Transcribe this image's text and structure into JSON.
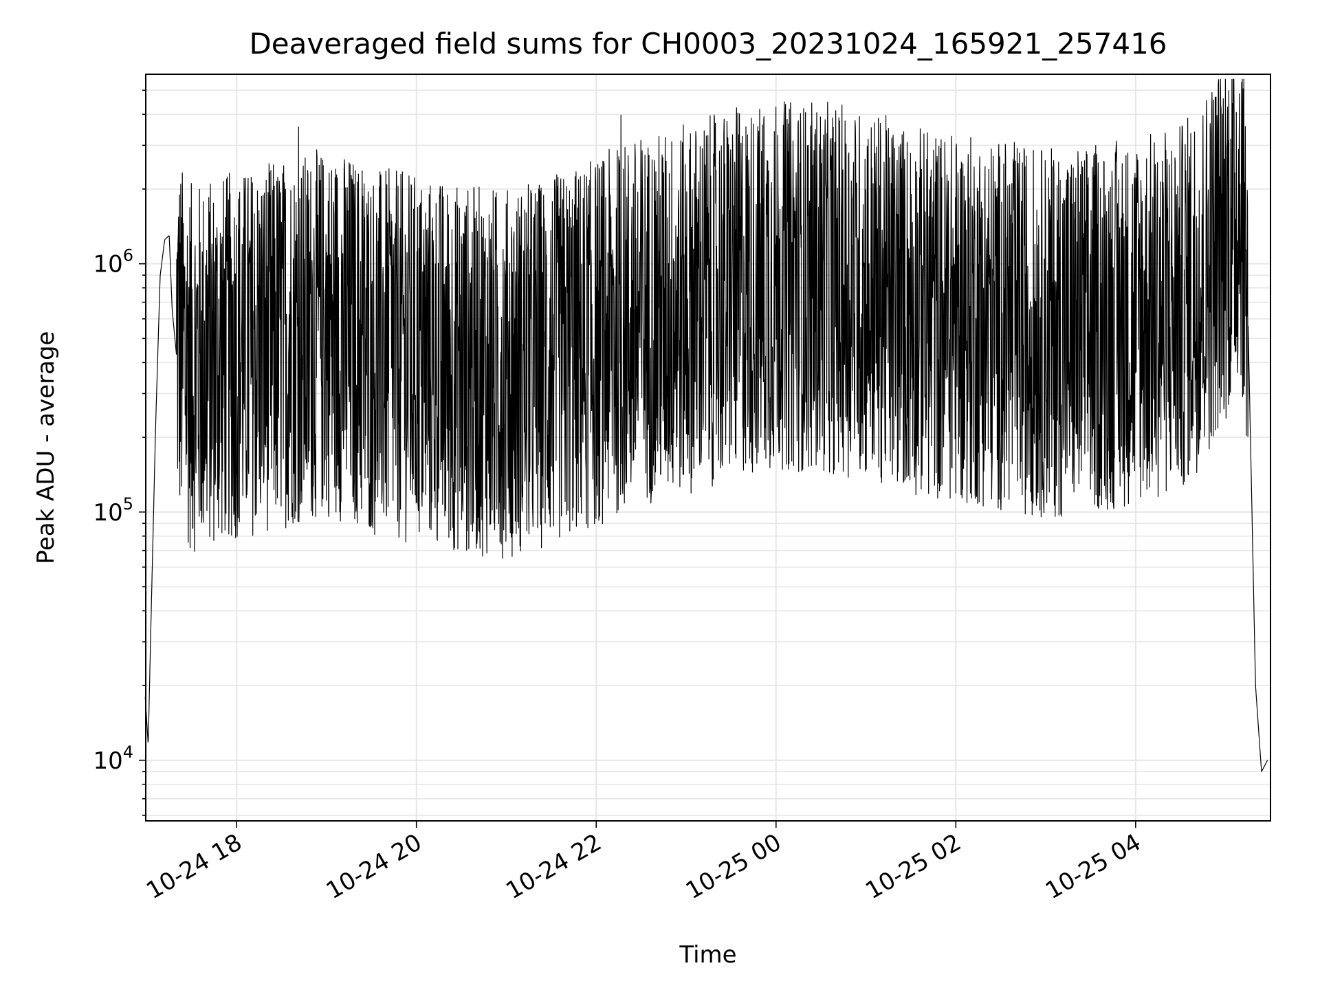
{
  "chart_data": {
    "type": "line",
    "title": "Deaveraged field sums for CH0003_20231024_165921_257416",
    "xlabel": "Time",
    "ylabel": "Peak ADU - average",
    "yscale": "log",
    "ylim": [
      5700,
      5800000
    ],
    "xlim": [
      "2023-10-24 16:59:21",
      "2023-10-25 05:30:00"
    ],
    "grid": true,
    "line_color": "#000000",
    "grid_color": "#e6e6e6",
    "xtick_labels": [
      "10-24 18",
      "10-24 20",
      "10-24 22",
      "10-25 00",
      "10-25 02",
      "10-25 04"
    ],
    "xtick_values": [
      "2023-10-24 18:00",
      "2023-10-24 20:00",
      "2023-10-24 22:00",
      "2023-10-25 00:00",
      "2023-10-25 02:00",
      "2023-10-25 04:00"
    ],
    "ytick_labels": [
      {
        "base": "10",
        "exp": "4",
        "value": 10000
      },
      {
        "base": "10",
        "exp": "5",
        "value": 100000
      },
      {
        "base": "10",
        "exp": "6",
        "value": 1000000
      }
    ],
    "series": [
      {
        "x": [
          "2023-10-24 16:59",
          "2023-10-24 17:01",
          "2023-10-24 17:03",
          "2023-10-24 17:06",
          "2023-10-24 17:09",
          "2023-10-24 17:12",
          "2023-10-24 17:15",
          "2023-10-24 17:17",
          "2023-10-24 17:20",
          "2023-10-24 17:24",
          "2023-10-24 17:30",
          "2023-10-24 17:45",
          "2023-10-24 18:00",
          "2023-10-24 18:30",
          "2023-10-24 19:00",
          "2023-10-24 19:15",
          "2023-10-24 19:30",
          "2023-10-24 20:00",
          "2023-10-24 20:30",
          "2023-10-24 21:00",
          "2023-10-24 21:30",
          "2023-10-24 22:00",
          "2023-10-24 22:20",
          "2023-10-24 22:35",
          "2023-10-24 23:00",
          "2023-10-24 23:30",
          "2023-10-25 00:00",
          "2023-10-25 00:30",
          "2023-10-25 01:00",
          "2023-10-25 01:30",
          "2023-10-25 02:00",
          "2023-10-25 02:30",
          "2023-10-25 03:00",
          "2023-10-25 03:30",
          "2023-10-25 04:00",
          "2023-10-25 04:30",
          "2023-10-25 04:45",
          "2023-10-25 05:05",
          "2023-10-25 05:10",
          "2023-10-25 05:15",
          "2023-10-25 05:20",
          "2023-10-25 05:24",
          "2023-10-25 05:28"
        ],
        "values": [
          18000,
          11500,
          40000,
          230000,
          900000,
          1250000,
          1300000,
          650000,
          420000,
          350000,
          300000,
          320000,
          340000,
          380000,
          420000,
          400000,
          350000,
          330000,
          300000,
          290000,
          320000,
          380000,
          450000,
          480000,
          520000,
          600000,
          650000,
          640000,
          600000,
          520000,
          480000,
          450000,
          420000,
          430000,
          470000,
          520000,
          700000,
          1200000,
          1600000,
          600000,
          20000,
          9000,
          10000
        ]
      }
    ]
  }
}
